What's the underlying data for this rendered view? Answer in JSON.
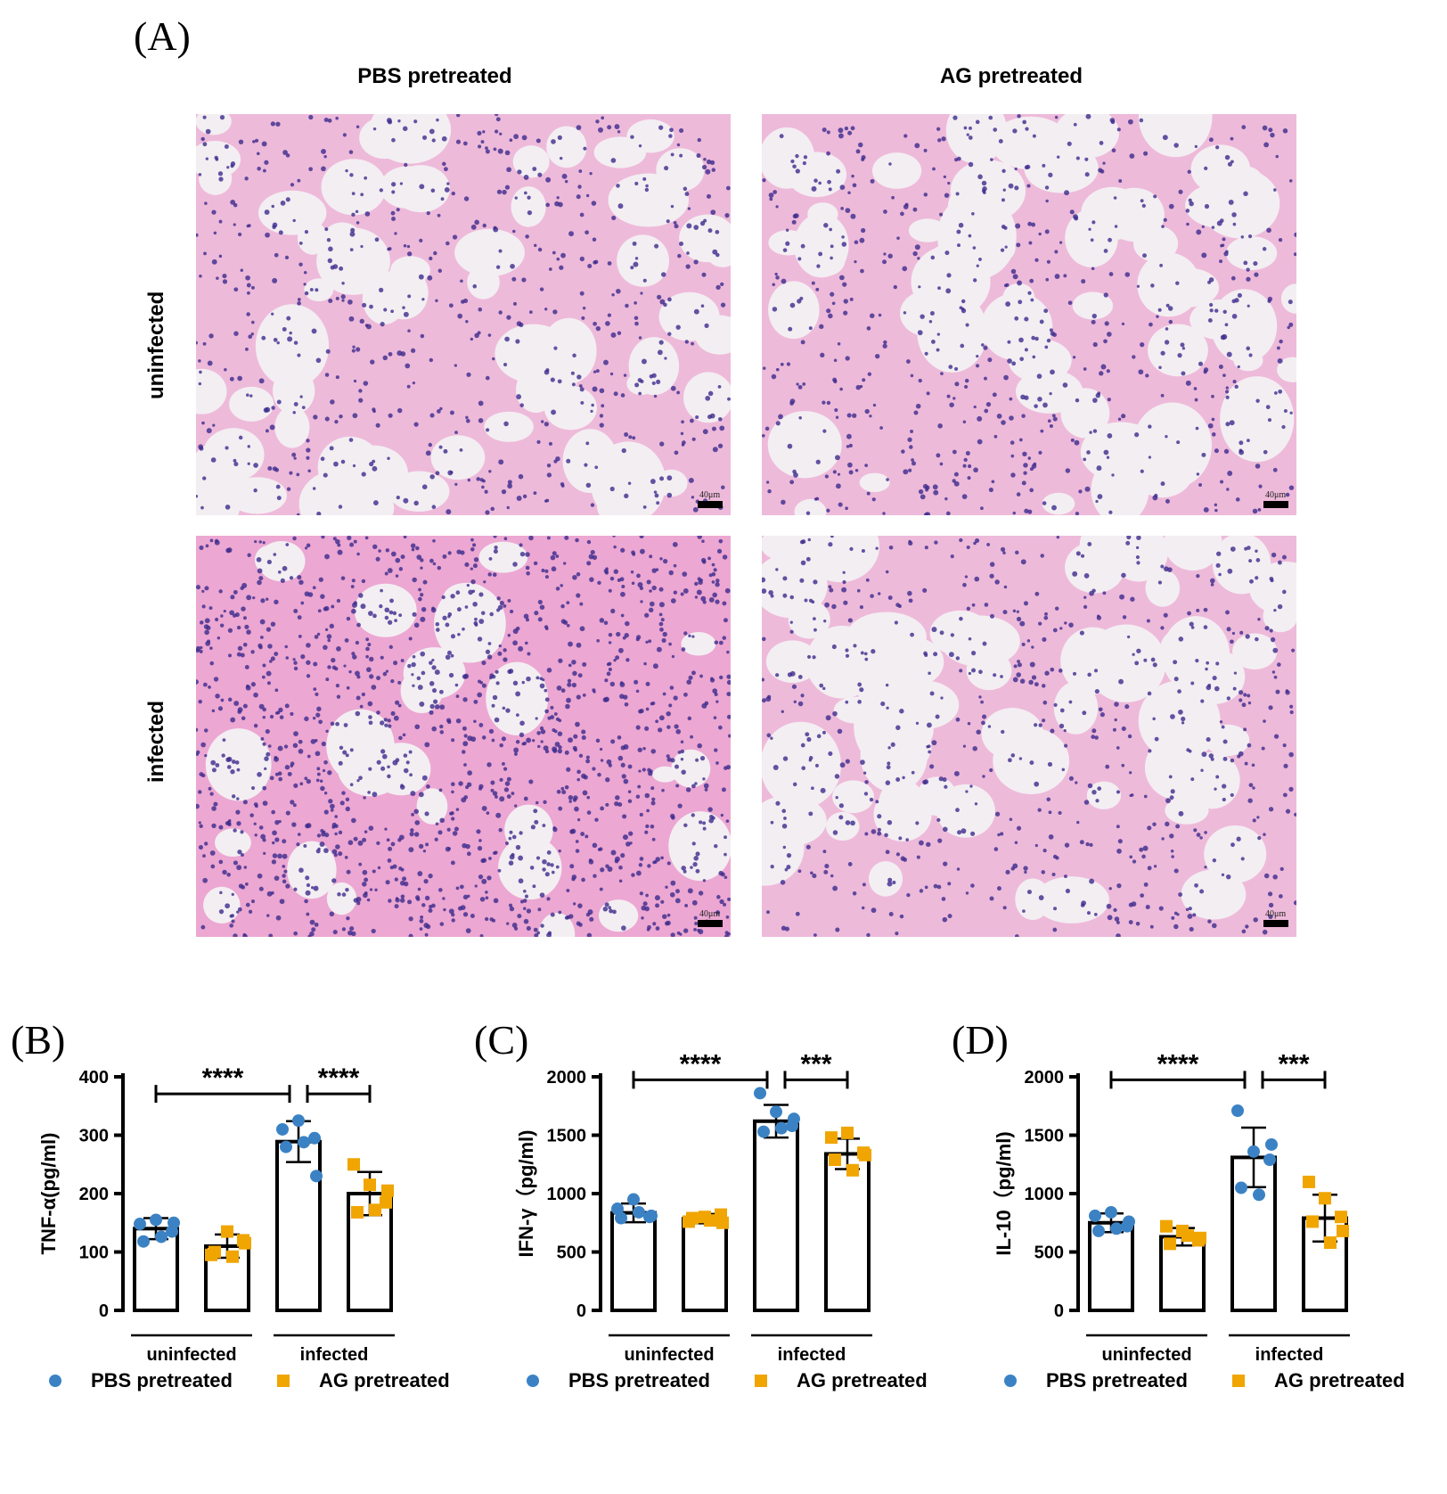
{
  "figure": {
    "panel_a_label": "(A)",
    "col_headers": [
      "PBS pretreated",
      "AG pretreated"
    ],
    "row_headers": [
      "uninfected",
      "infected"
    ],
    "scale_label": "40μm",
    "stain_colors": {
      "background": "#f3eef2",
      "tissue": "#e98fc7",
      "nuclei": "#3b2a8c"
    }
  },
  "chart_data": [
    {
      "panel": "(B)",
      "type": "bar",
      "ylabel": "TNF-α(pg/ml)",
      "ylim": [
        0,
        400
      ],
      "yticks": [
        0,
        100,
        200,
        300,
        400
      ],
      "group_labels": [
        "uninfected",
        "infected"
      ],
      "series": [
        {
          "name": "PBS pretreated",
          "marker": "circle",
          "color": "#3b82c4",
          "means": [
            140,
            289
          ],
          "sd": [
            18,
            35
          ],
          "points": [
            [
              148,
              155,
              135,
              118,
              126,
              150
            ],
            [
              310,
              325,
              295,
              280,
              288,
              230
            ]
          ]
        },
        {
          "name": "AG pretreated",
          "marker": "square",
          "color": "#f0a500",
          "means": [
            110,
            200
          ],
          "sd": [
            20,
            37
          ],
          "points": [
            [
              95,
              135,
              120,
              100,
              92,
              115
            ],
            [
              250,
              215,
              185,
              168,
              172,
              205
            ]
          ]
        }
      ],
      "significance": [
        {
          "from": [
            0,
            0
          ],
          "to": [
            1,
            0
          ],
          "label": "****",
          "y": 380
        },
        {
          "from": [
            1,
            0
          ],
          "to": [
            1,
            1
          ],
          "label": "****",
          "y": 380
        }
      ]
    },
    {
      "panel": "(C)",
      "type": "bar",
      "ylabel": "IFN-γ（pg/ml)",
      "ylim": [
        0,
        2000
      ],
      "yticks": [
        0,
        500,
        1000,
        1500,
        2000
      ],
      "group_labels": [
        "uninfected",
        "infected"
      ],
      "series": [
        {
          "name": "PBS pretreated",
          "marker": "circle",
          "color": "#3b82c4",
          "means": [
            835,
            1620
          ],
          "sd": [
            80,
            140
          ],
          "points": [
            [
              870,
              950,
              800,
              790,
              840,
              810
            ],
            [
              1860,
              1700,
              1580,
              1530,
              1560,
              1640
            ]
          ]
        },
        {
          "name": "AG pretreated",
          "marker": "square",
          "color": "#f0a500",
          "means": [
            785,
            1340
          ],
          "sd": [
            40,
            130
          ],
          "points": [
            [
              760,
              800,
              820,
              790,
              770,
              750
            ],
            [
              1480,
              1520,
              1350,
              1290,
              1200,
              1330
            ]
          ]
        }
      ],
      "significance": [
        {
          "from": [
            0,
            0
          ],
          "to": [
            1,
            0
          ],
          "label": "****",
          "y": 2020
        },
        {
          "from": [
            1,
            0
          ],
          "to": [
            1,
            1
          ],
          "label": "***",
          "y": 2020
        }
      ]
    },
    {
      "panel": "(D)",
      "type": "bar",
      "ylabel": "IL-10（pg/ml)",
      "ylim": [
        0,
        2000
      ],
      "yticks": [
        0,
        500,
        1000,
        1500,
        2000
      ],
      "group_labels": [
        "uninfected",
        "infected"
      ],
      "series": [
        {
          "name": "PBS pretreated",
          "marker": "circle",
          "color": "#3b82c4",
          "means": [
            750,
            1310
          ],
          "sd": [
            80,
            255
          ],
          "points": [
            [
              810,
              840,
              720,
              680,
              700,
              760
            ],
            [
              1710,
              1360,
              1290,
              1050,
              990,
              1420
            ]
          ]
        },
        {
          "name": "AG pretreated",
          "marker": "square",
          "color": "#f0a500",
          "means": [
            630,
            790
          ],
          "sd": [
            75,
            200
          ],
          "points": [
            [
              720,
              680,
              600,
              570,
              640,
              620
            ],
            [
              1100,
              960,
              800,
              760,
              580,
              680
            ]
          ]
        }
      ],
      "significance": [
        {
          "from": [
            0,
            0
          ],
          "to": [
            1,
            0
          ],
          "label": "****",
          "y": 2020
        },
        {
          "from": [
            1,
            0
          ],
          "to": [
            1,
            1
          ],
          "label": "***",
          "y": 2020
        }
      ]
    }
  ],
  "legend": [
    {
      "label": "PBS pretreated",
      "marker": "circle",
      "color": "#3b82c4"
    },
    {
      "label": "AG pretreated",
      "marker": "square",
      "color": "#f0a500"
    }
  ]
}
